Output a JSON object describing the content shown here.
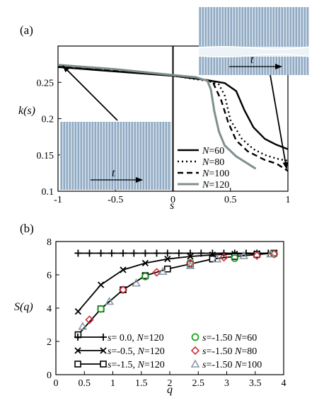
{
  "chart_data": [
    {
      "type": "line",
      "panel_label": "(a)",
      "xlabel": "s",
      "ylabel": "k(s)",
      "xlim": [
        -1,
        1
      ],
      "ylim": [
        0.1,
        0.3
      ],
      "xticks": [
        "-1",
        "-0.5",
        "0",
        "0.5",
        "1"
      ],
      "yticks": [
        "0.1",
        "0.15",
        "0.2",
        "0.25"
      ],
      "legend_position": "lower-right",
      "series": [
        {
          "name": "N=60",
          "legend_prefix": "N",
          "legend_suffix": "=60",
          "dash": "solid",
          "color": "#000000",
          "points": [
            [
              -1,
              0.271
            ],
            [
              -0.5,
              0.265
            ],
            [
              0,
              0.259
            ],
            [
              0.3,
              0.253
            ],
            [
              0.45,
              0.249
            ],
            [
              0.55,
              0.238
            ],
            [
              0.62,
              0.212
            ],
            [
              0.7,
              0.188
            ],
            [
              0.8,
              0.172
            ],
            [
              0.9,
              0.164
            ],
            [
              1,
              0.158
            ]
          ]
        },
        {
          "name": "N=80",
          "legend_prefix": "N",
          "legend_suffix": "=80",
          "dash": "dotted",
          "color": "#000000",
          "points": [
            [
              -1,
              0.272
            ],
            [
              -0.5,
              0.266
            ],
            [
              0,
              0.259
            ],
            [
              0.3,
              0.252
            ],
            [
              0.4,
              0.247
            ],
            [
              0.45,
              0.232
            ],
            [
              0.5,
              0.198
            ],
            [
              0.6,
              0.172
            ],
            [
              0.7,
              0.158
            ],
            [
              0.8,
              0.15
            ],
            [
              0.9,
              0.145
            ],
            [
              1,
              0.142
            ]
          ]
        },
        {
          "name": "N=100",
          "legend_prefix": "N",
          "legend_suffix": "=100",
          "dash": "dashed",
          "color": "#000000",
          "points": [
            [
              -1,
              0.273
            ],
            [
              -0.5,
              0.267
            ],
            [
              0,
              0.26
            ],
            [
              0.3,
              0.253
            ],
            [
              0.35,
              0.249
            ],
            [
              0.42,
              0.225
            ],
            [
              0.48,
              0.195
            ],
            [
              0.55,
              0.17
            ],
            [
              0.65,
              0.155
            ],
            [
              0.8,
              0.143
            ],
            [
              0.9,
              0.138
            ],
            [
              1,
              0.128
            ]
          ]
        },
        {
          "name": "N=120",
          "legend_prefix": "N",
          "legend_suffix": "=120",
          "dash": "solid",
          "color": "#7f8f8f",
          "points": [
            [
              -1,
              0.274
            ],
            [
              -0.5,
              0.268
            ],
            [
              0,
              0.26
            ],
            [
              0.2,
              0.257
            ],
            [
              0.3,
              0.252
            ],
            [
              0.33,
              0.24
            ],
            [
              0.36,
              0.21
            ],
            [
              0.4,
              0.182
            ],
            [
              0.45,
              0.163
            ],
            [
              0.55,
              0.148
            ],
            [
              0.65,
              0.138
            ],
            [
              0.72,
              0.131
            ]
          ]
        }
      ],
      "insets": [
        {
          "name": "inset-left",
          "arrow_label": "t",
          "band": false
        },
        {
          "name": "inset-right",
          "arrow_label": "t",
          "band": true
        }
      ]
    },
    {
      "type": "line",
      "panel_label": "(b)",
      "xlabel": "q",
      "ylabel": "S(q)",
      "xlim": [
        0,
        4
      ],
      "ylim": [
        0,
        8
      ],
      "xticks": [
        "0",
        "0.5",
        "1",
        "1.5",
        "2",
        "2.5",
        "3",
        "3.5",
        "4"
      ],
      "yticks": [
        "0",
        "2",
        "4",
        "6",
        "8"
      ],
      "legend_position": "lower-center",
      "series": [
        {
          "name": "s= 0.0, N=120",
          "legend_prefix": "s= 0.0, ",
          "legend_mid": "N",
          "legend_suffix": "=120",
          "marker": "plus",
          "color": "#000000",
          "line": true,
          "x": [
            0.39,
            0.59,
            0.79,
            0.98,
            1.18,
            1.37,
            1.57,
            1.77,
            1.96,
            2.16,
            2.36,
            2.55,
            2.75,
            2.95,
            3.14,
            3.34,
            3.53,
            3.73,
            3.83
          ],
          "y": [
            7.3,
            7.3,
            7.3,
            7.3,
            7.3,
            7.3,
            7.3,
            7.3,
            7.3,
            7.3,
            7.3,
            7.3,
            7.3,
            7.3,
            7.3,
            7.3,
            7.3,
            7.3,
            7.3
          ]
        },
        {
          "name": "s=-0.5, N=120",
          "legend_prefix": "s=-0.5, ",
          "legend_mid": "N",
          "legend_suffix": "=120",
          "marker": "x",
          "color": "#000000",
          "line": true,
          "x": [
            0.39,
            0.79,
            1.18,
            1.57,
            1.96,
            2.36,
            2.75,
            3.14,
            3.53,
            3.83
          ],
          "y": [
            3.8,
            5.4,
            6.3,
            6.7,
            6.95,
            7.1,
            7.2,
            7.25,
            7.28,
            7.3
          ]
        },
        {
          "name": "s=-1.5, N=120",
          "legend_prefix": "s=-1.5, ",
          "legend_mid": "N",
          "legend_suffix": "=120",
          "marker": "square",
          "color": "#000000",
          "line": true,
          "x": [
            0.39,
            0.79,
            1.18,
            1.57,
            1.96,
            2.36,
            2.75,
            3.14,
            3.53,
            3.83
          ],
          "y": [
            2.4,
            3.95,
            5.1,
            5.95,
            6.35,
            6.65,
            6.95,
            7.1,
            7.22,
            7.3
          ]
        },
        {
          "name": "s=-1.50 N=60",
          "legend_prefix": "s=-1.50 ",
          "legend_mid": "N",
          "legend_suffix": "=60",
          "marker": "circle",
          "color": "#21a321",
          "line": false,
          "x": [
            0.79,
            1.57,
            2.36,
            3.14,
            3.83
          ],
          "y": [
            3.95,
            5.9,
            6.7,
            7.0,
            7.25
          ]
        },
        {
          "name": "s=-1.50 N=80",
          "legend_prefix": "s=-1.50 ",
          "legend_mid": "N",
          "legend_suffix": "=80",
          "marker": "diamond",
          "color": "#d0303a",
          "line": false,
          "x": [
            0.59,
            1.18,
            1.77,
            2.36,
            2.95,
            3.53,
            3.83
          ],
          "y": [
            3.3,
            5.1,
            6.15,
            6.7,
            7.05,
            7.15,
            7.25
          ]
        },
        {
          "name": "s=-1.50 N=100",
          "legend_prefix": "s=-1.50 ",
          "legend_mid": "N",
          "legend_suffix": "=100",
          "marker": "triangle",
          "color": "#8a9aa6",
          "line": false,
          "x": [
            0.47,
            0.94,
            1.41,
            1.88,
            2.36,
            2.83,
            3.3,
            3.77
          ],
          "y": [
            2.9,
            4.4,
            5.5,
            6.2,
            6.55,
            6.95,
            7.15,
            7.25
          ]
        }
      ]
    }
  ]
}
